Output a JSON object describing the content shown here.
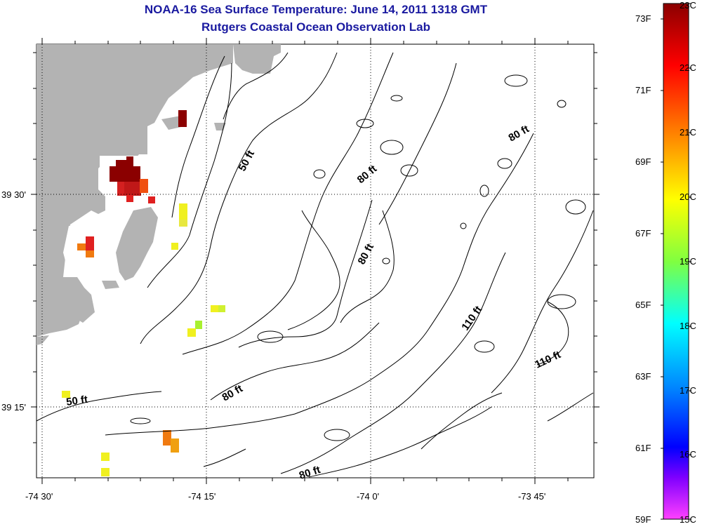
{
  "title": "NOAA-16 Sea Surface Temperature:  June 14, 2011 1318 GMT",
  "subtitle": "Rutgers Coastal Ocean Observation Lab",
  "map": {
    "x_ticks": [
      {
        "label": "-74 30'",
        "lon": -74.5
      },
      {
        "label": "-74 15'",
        "lon": -74.25
      },
      {
        "label": "-74 0'",
        "lon": -74.0
      },
      {
        "label": "-73 45'",
        "lon": -73.75
      }
    ],
    "y_ticks": [
      {
        "label": "39 30'",
        "lat": 39.5
      },
      {
        "label": "39 15'",
        "lat": 39.25
      }
    ],
    "contour_labels": [
      "50 ft",
      "80 ft",
      "80 ft",
      "80 ft",
      "110 ft",
      "110 ft",
      "80 ft",
      "50 ft",
      "80 ft"
    ],
    "land_color": "#b3b3b3",
    "sst_pixels_colors": {
      "warm_dark": "#8b0000",
      "red": "#d42020",
      "orange": "#f07a10",
      "yellow": "#f0f020",
      "yellow_green": "#a8f030"
    }
  },
  "colorbar": {
    "celsius": [
      "23C",
      "22C",
      "21C",
      "20C",
      "19C",
      "18C",
      "17C",
      "16C",
      "15C"
    ],
    "fahrenheit": [
      "73F",
      "71F",
      "69F",
      "67F",
      "65F",
      "63F",
      "61F",
      "59F"
    ],
    "colors_top_to_bottom": [
      "#8b0000",
      "#ff0000",
      "#ff8000",
      "#ffff00",
      "#80ff40",
      "#00ffff",
      "#0080ff",
      "#0000ff",
      "#8000ff",
      "#ff40ff"
    ]
  }
}
